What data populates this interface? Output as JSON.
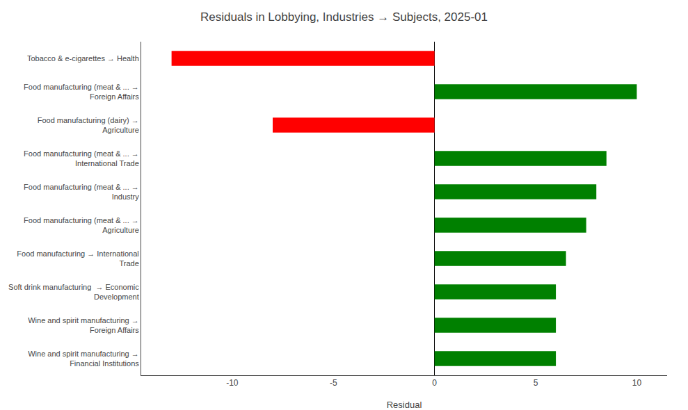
{
  "chart_data": {
    "type": "bar",
    "orientation": "horizontal",
    "title": "Residuals in Lobbying, Industries → Subjects, 2025-01",
    "xlabel": "Residual",
    "categories": [
      "Tobacco & e-cigarettes → Health",
      "Food manufacturing (meat & ... →\nForeign Affairs",
      "Food manufacturing (dairy) →\nAgriculture",
      "Food manufacturing (meat & ... →\nInternational Trade",
      "Food manufacturing (meat & ... →\nIndustry",
      "Food manufacturing (meat & ... →\nAgriculture",
      "Food manufacturing → International\nTrade",
      "Soft drink manufacturing  → Economic\nDevelopment",
      "Wine and spirit manufacturing →\nForeign Affairs",
      "Wine and spirit manufacturing →\nFinancial Institutions"
    ],
    "values": [
      -13.0,
      10.0,
      -8.0,
      8.5,
      8.0,
      7.5,
      6.5,
      6.0,
      6.0,
      6.0
    ],
    "colors": [
      "red",
      "green",
      "red",
      "green",
      "green",
      "green",
      "green",
      "green",
      "green",
      "green"
    ],
    "xlim": [
      -14.5,
      11.5
    ],
    "xticks": [
      -10,
      -5,
      0,
      5,
      10
    ],
    "grid": false
  }
}
